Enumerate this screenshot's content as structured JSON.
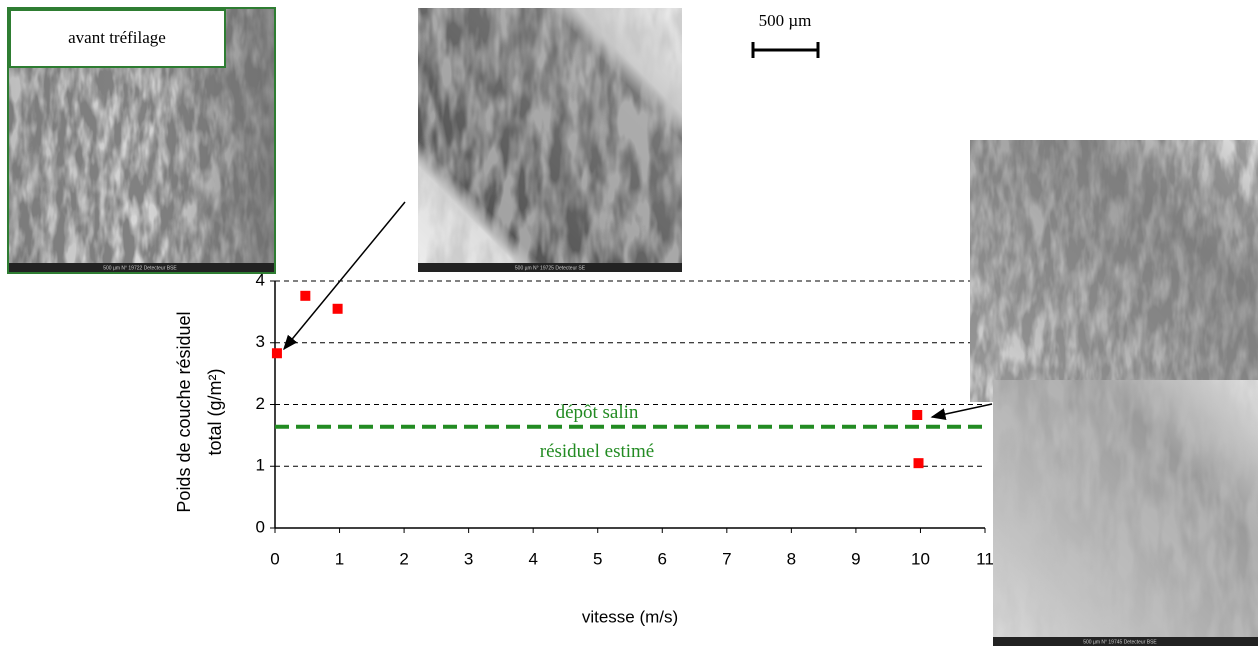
{
  "chart_data": {
    "type": "scatter",
    "x": [
      0.03,
      0.47,
      0.97,
      9.95,
      9.97
    ],
    "values": [
      2.83,
      3.76,
      3.55,
      1.83,
      1.05
    ],
    "color": "#ff0000",
    "xlim": [
      0,
      11
    ],
    "xticks": [
      0,
      1,
      2,
      3,
      4,
      5,
      6,
      7,
      8,
      9,
      10,
      11
    ],
    "ylim": [
      0,
      4
    ],
    "yticks": [
      0,
      1,
      2,
      3,
      4
    ],
    "grid": true,
    "x_label": "vitesse (m/s)",
    "y_label": [
      "Poids de couche résiduel",
      "total (g/m²)"
    ],
    "reference_line": {
      "value": 1.64,
      "color": "#228b22"
    },
    "annotations": [
      "dépôt salin",
      "résiduel estimé"
    ]
  },
  "scale_bar": "500 µm",
  "images": [
    {
      "label": "avant tréfilage",
      "caption": "500 µm    N° 19722    Detecteur BSE"
    },
    {
      "caption": "500 µm    N° 19725    Detecteur SE"
    },
    {
      "caption": "500 µm    N° 19745    Detecteur BSE"
    }
  ]
}
